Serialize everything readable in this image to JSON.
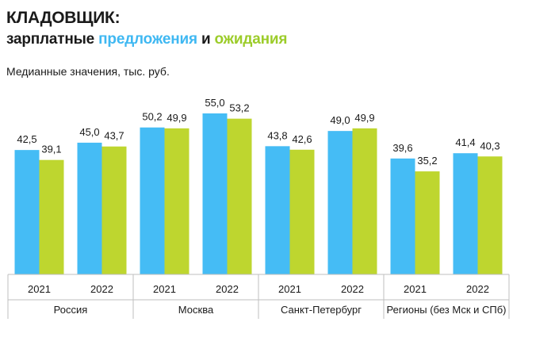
{
  "header": {
    "title": "КЛАДОВЩИК:",
    "subtitle_part1": "зарплатные ",
    "subtitle_part2": "предложения",
    "subtitle_part3": " и ",
    "subtitle_part4": "ожидания",
    "note": "Медианные значения, тыс. руб."
  },
  "colors": {
    "offers": "#45bcf5",
    "expectations": "#bed62f",
    "subtitle_offers": "#3fb8f2",
    "subtitle_expectations": "#9ccc2a",
    "grid": "#bfbfbf"
  },
  "chart_data": {
    "type": "bar",
    "groups": [
      "Россия",
      "Москва",
      "Санкт-Петербург",
      "Регионы (без Мск и СПб)"
    ],
    "years": [
      "2021",
      "2022"
    ],
    "series": [
      {
        "values": [
          42.5,
          45.0,
          50.2,
          55.0,
          43.8,
          49.0,
          39.6,
          41.4
        ],
        "labels": [
          "42,5",
          "45,0",
          "50,2",
          "55,0",
          "43,8",
          "49,0",
          "39,6",
          "41,4"
        ]
      },
      {
        "values": [
          39.1,
          43.7,
          49.9,
          53.2,
          42.6,
          49.9,
          35.2,
          40.3
        ],
        "labels": [
          "39,1",
          "43,7",
          "49,9",
          "53,2",
          "42,6",
          "49,9",
          "35,2",
          "40,3"
        ]
      }
    ],
    "ylim": [
      0,
      55.0
    ],
    "grid": false,
    "legend": "none"
  }
}
